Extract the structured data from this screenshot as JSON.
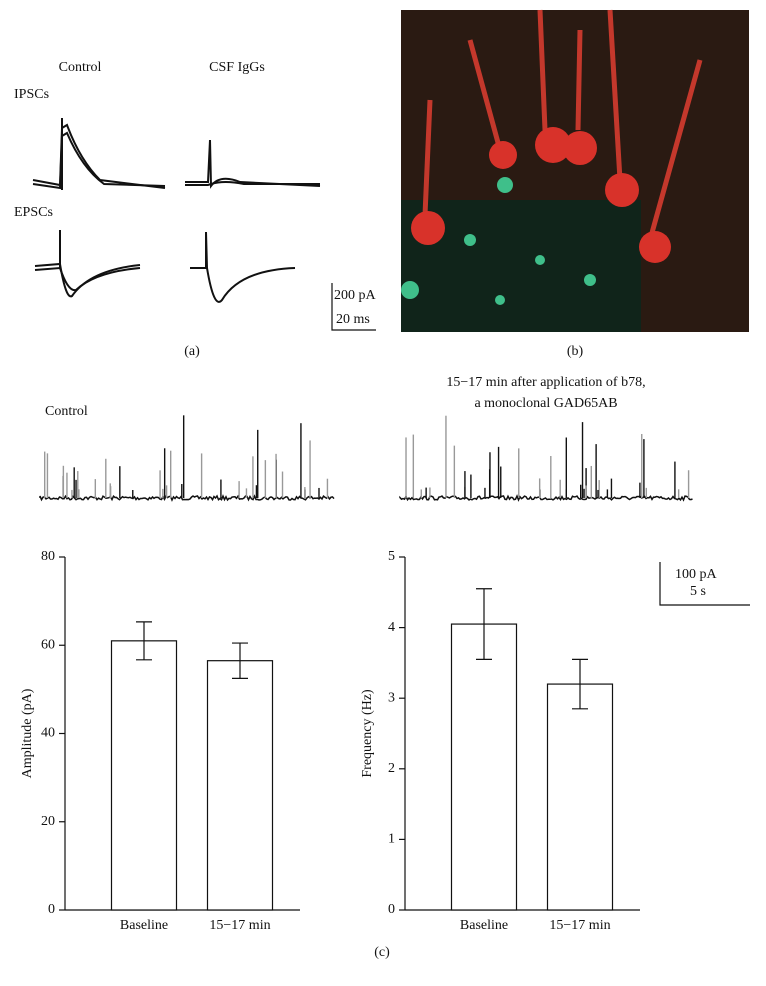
{
  "panel_a": {
    "columns": [
      "Control",
      "CSF IgGs"
    ],
    "rows": [
      "IPSCs",
      "EPSCs"
    ],
    "scale": [
      "200 pA",
      "20 ms"
    ],
    "label": "(a)"
  },
  "panel_b": {
    "label": "(b)"
  },
  "panel_c": {
    "left_title": "Control",
    "right_title": [
      "15−17 min after application of b78,",
      "a monoclonal GAD65AB"
    ],
    "scale": [
      "100 pA",
      "5 s"
    ],
    "label": "(c)"
  },
  "chart_data": [
    {
      "type": "bar",
      "y_label": "Amplitude (pA)",
      "categories": [
        "Baseline",
        "15−17 min"
      ],
      "values": [
        61,
        56.5
      ],
      "errors": [
        4.3,
        4
      ],
      "ylim": [
        0,
        80
      ],
      "yticks": [
        0,
        20,
        40,
        60,
        80
      ],
      "color": "#ffffff"
    },
    {
      "type": "bar",
      "y_label": "Frequency (Hz)",
      "categories": [
        "Baseline",
        "15−17 min"
      ],
      "values": [
        4.05,
        3.2
      ],
      "errors": [
        0.5,
        0.35
      ],
      "ylim": [
        0,
        5
      ],
      "yticks": [
        0,
        1,
        2,
        3,
        4,
        5
      ],
      "color": "#ffffff"
    }
  ]
}
